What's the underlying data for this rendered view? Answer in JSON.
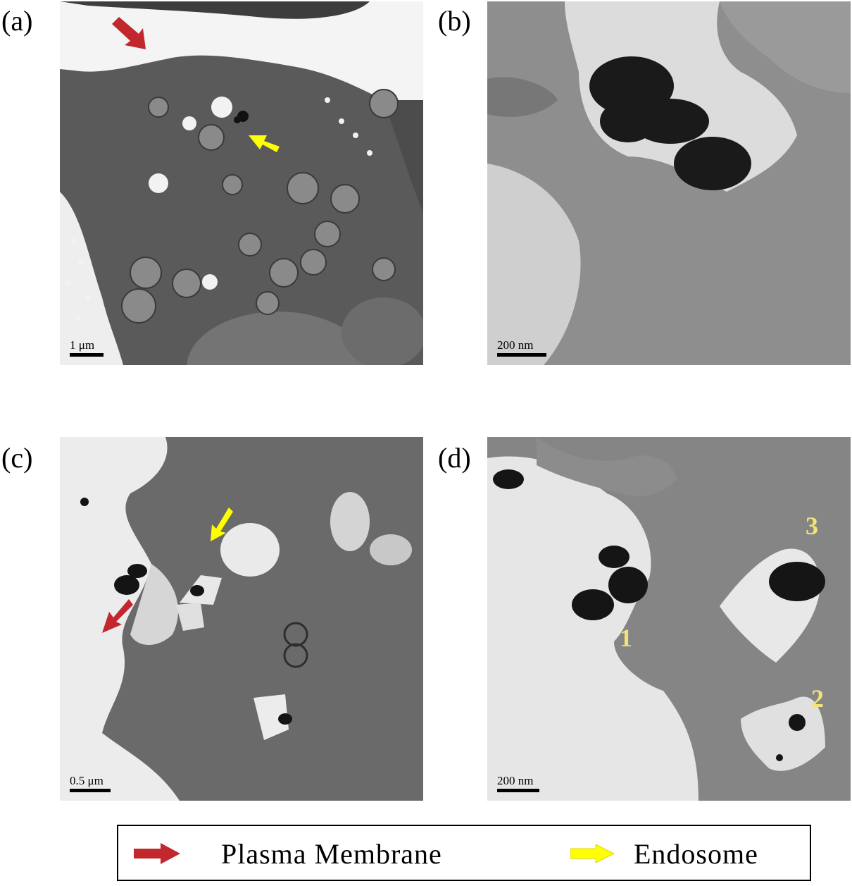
{
  "panels": [
    {
      "label": "(a)",
      "scale": "1 μm"
    },
    {
      "label": "(b)",
      "scale": "200 nm"
    },
    {
      "label": "(c)",
      "scale": "0.5 μm"
    },
    {
      "label": "(d)",
      "scale": "200 nm"
    }
  ],
  "annotations": {
    "n1": "1",
    "n2": "2",
    "n3": "3"
  },
  "legend": {
    "plasma_membrane": "Plasma Membrane",
    "endosome": "Endosome"
  },
  "colors": {
    "plasma_membrane_arrow": "#c1272d",
    "endosome_arrow": "#ffff00",
    "number_labels": "#f2e27a"
  }
}
